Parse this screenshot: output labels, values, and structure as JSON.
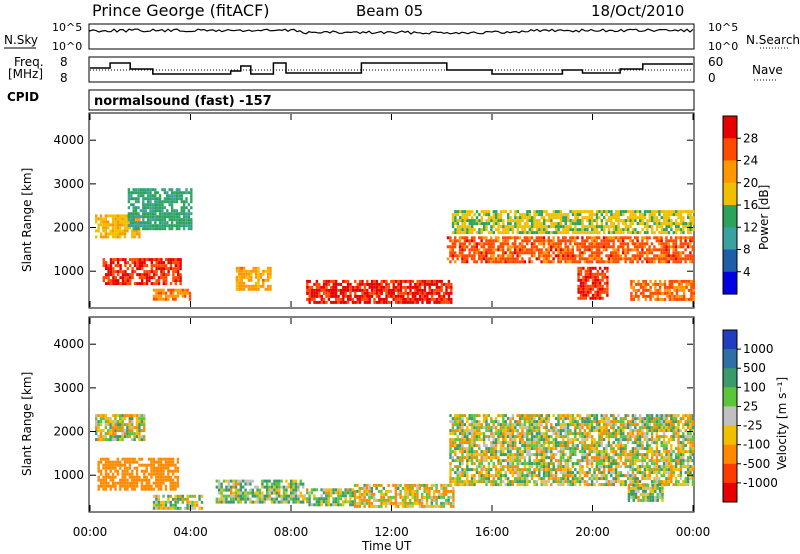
{
  "header": {
    "station": "Prince George (fitACF)",
    "beam": "Beam 05",
    "date": "18/Oct/2010"
  },
  "panels": {
    "nsky": {
      "label": "N.Sky",
      "axis_top": "10^5",
      "axis_bottom": "10^0",
      "right_top": "10^5",
      "right_bottom": "10^0",
      "right_label": "N.Search"
    },
    "freq": {
      "label": "Freq.",
      "unit": "[MHz]",
      "tick_top": "8",
      "tick_bottom": "8",
      "right_top": "60",
      "right_bottom": "0",
      "right_label": "Nave"
    },
    "cpid": {
      "label": "CPID",
      "text": "normalsound (fast) -157"
    },
    "power": {
      "ylabel": "Slant Range [km]",
      "yticks": [
        "4000",
        "3000",
        "2000",
        "1000"
      ],
      "colorbar_label": "Power [dB]",
      "colorbar_ticks": [
        "28",
        "24",
        "20",
        "16",
        "12",
        "8",
        "4"
      ],
      "colorbar_colors": [
        "#e60000",
        "#ff4a00",
        "#ff9800",
        "#f0c000",
        "#2ca35a",
        "#3aa0a0",
        "#1e5ea8",
        "#0000e0"
      ]
    },
    "velocity": {
      "ylabel": "Slant Range [km]",
      "yticks": [
        "4000",
        "3000",
        "2000",
        "1000"
      ],
      "colorbar_label": "Velocity [m s⁻¹]",
      "colorbar_ticks": [
        "1000",
        "500",
        "100",
        "25",
        "-25",
        "-100",
        "-500",
        "-1000"
      ],
      "colorbar_colors": [
        "#1f3fbf",
        "#2e6fa8",
        "#3a9a6a",
        "#5cc63a",
        "#c0c0c0",
        "#f0c000",
        "#ff8a00",
        "#ff3a00",
        "#e60000"
      ]
    }
  },
  "xaxis": {
    "label": "Time UT",
    "ticks": [
      "00:00",
      "04:00",
      "08:00",
      "12:00",
      "16:00",
      "20:00",
      "00:00"
    ]
  },
  "chart_data": [
    {
      "type": "heatmap",
      "title": "Power [dB]",
      "x": [
        "00:00",
        "04:00",
        "08:00",
        "12:00",
        "16:00",
        "20:00",
        "00:00"
      ],
      "xlabel": "Time UT",
      "ylabel": "Slant Range [km]",
      "ylim": [
        180,
        4600
      ],
      "zlim": [
        0,
        30
      ],
      "regions": [
        {
          "t0": 0.5,
          "t1": 3.6,
          "r0": 700,
          "r1": 1300,
          "value": 26
        },
        {
          "t0": 0.2,
          "t1": 2.0,
          "r0": 1800,
          "r1": 2300,
          "value": 18
        },
        {
          "t0": 1.5,
          "t1": 4.0,
          "r0": 2000,
          "r1": 2900,
          "value": 12
        },
        {
          "t0": 2.5,
          "t1": 4.0,
          "r0": 350,
          "r1": 600,
          "value": 22
        },
        {
          "t0": 5.8,
          "t1": 7.2,
          "r0": 600,
          "r1": 1100,
          "value": 20
        },
        {
          "t0": 8.6,
          "t1": 14.4,
          "r0": 300,
          "r1": 800,
          "value": 27
        },
        {
          "t0": 14.2,
          "t1": 24.0,
          "r0": 1200,
          "r1": 1800,
          "value": 24
        },
        {
          "t0": 14.4,
          "t1": 24.0,
          "r0": 1900,
          "r1": 2400,
          "value": 16
        },
        {
          "t0": 19.4,
          "t1": 20.6,
          "r0": 400,
          "r1": 1100,
          "value": 26
        },
        {
          "t0": 21.5,
          "t1": 24.0,
          "r0": 350,
          "r1": 800,
          "value": 23
        }
      ]
    },
    {
      "type": "heatmap",
      "title": "Velocity [m s⁻¹]",
      "x": [
        "00:00",
        "04:00",
        "08:00",
        "12:00",
        "16:00",
        "20:00",
        "00:00"
      ],
      "xlabel": "Time UT",
      "ylabel": "Slant Range [km]",
      "ylim": [
        180,
        4600
      ],
      "zlim": [
        -1000,
        1000
      ],
      "regions": [
        {
          "t0": 0.3,
          "t1": 3.5,
          "r0": 700,
          "r1": 1400,
          "value": -300
        },
        {
          "t0": 0.2,
          "t1": 2.2,
          "r0": 1800,
          "r1": 2400,
          "value": 0
        },
        {
          "t0": 2.5,
          "t1": 4.5,
          "r0": 250,
          "r1": 550,
          "value": 0
        },
        {
          "t0": 5.0,
          "t1": 8.5,
          "r0": 400,
          "r1": 900,
          "value": 60
        },
        {
          "t0": 8.5,
          "t1": 10.5,
          "r0": 350,
          "r1": 700,
          "value": 60
        },
        {
          "t0": 10.5,
          "t1": 14.5,
          "r0": 300,
          "r1": 800,
          "value": -60
        },
        {
          "t0": 14.3,
          "t1": 24.0,
          "r0": 800,
          "r1": 2400,
          "value": 0
        },
        {
          "t0": 21.4,
          "t1": 22.8,
          "r0": 400,
          "r1": 800,
          "value": 60
        }
      ]
    }
  ]
}
